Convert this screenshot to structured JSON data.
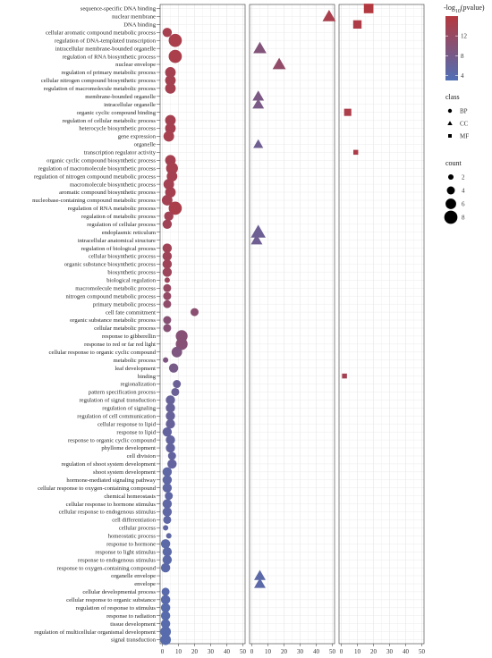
{
  "chart_data": {
    "type": "scatter",
    "title": "",
    "xlabel": "",
    "ylabel": "",
    "facets": [
      "BP",
      "CC",
      "MF"
    ],
    "xlim": [
      0,
      50
    ],
    "x_ticks": [
      "0",
      "10",
      "20",
      "30",
      "40",
      "50"
    ],
    "grid": true,
    "terms": [
      "sequence-specific DNA binding",
      "nuclear membrane",
      "DNA binding",
      "cellular aromatic compound metabolic process",
      "regulation of DNA-templated transcription",
      "intracellular membrane-bounded organelle",
      "regulation of RNA biosynthetic process",
      "nuclear envelope",
      "regulation of primary metabolic process",
      "cellular nitrogen compound biosynthetic process",
      "regulation of macromolecule metabolic process",
      "membrane-bounded organelle",
      "intracellular organelle",
      "organic cyclic compound binding",
      "regulation of cellular metabolic process",
      "heterocycle biosynthetic process",
      "gene expression",
      "organelle",
      "transcription regulator activity",
      "organic cyclic compound biosynthetic process",
      "regulation of macromolecule biosynthetic process",
      "regulation of nitrogen compound metabolic process",
      "macromolecule biosynthetic process",
      "aromatic compound biosynthetic process",
      "nucleobase-containing compound metabolic process",
      "regulation of RNA metabolic process",
      "regulation of metabolic process",
      "regulation of cellular process",
      "endoplasmic reticulum",
      "intracellular anatomical structure",
      "regulation of biological process",
      "cellular biosynthetic process",
      "organic substance biosynthetic process",
      "biosynthetic process",
      "biological regulation",
      "macromolecule metabolic process",
      "nitrogen compound metabolic process",
      "primary metabolic process",
      "cell fate commitment",
      "organic substance metabolic process",
      "cellular metabolic process",
      "response to gibberellin",
      "response to red or far red light",
      "cellular response to organic cyclic compound",
      "metabolic process",
      "leaf development",
      "binding",
      "regionalization",
      "pattern specification process",
      "regulation of signal transduction",
      "regulation of signaling",
      "regulation of cell communication",
      "cellular response to lipid",
      "response to lipid",
      "response to organic cyclic compound",
      "phyllome development",
      "cell division",
      "regulation of shoot system development",
      "shoot system development",
      "hormone-mediated signaling pathway",
      "cellular response to oxygen-containing compound",
      "chemical homeostasis",
      "cellular response to hormone stimulus",
      "cellular response to endogenous stimulus",
      "cell differentiation",
      "cellular process",
      "homeostatic process",
      "response to hormone",
      "response to light stimulus",
      "response to endogenous stimulus",
      "response to oxygen-containing compound",
      "organelle envelope",
      "envelope",
      "cellular developmental process",
      "cellular response to organic substance",
      "regulation of response to stimulus",
      "response to radiation",
      "tissue development",
      "regulation of multicellular organismal development",
      "signal transduction"
    ],
    "points": [
      {
        "term": "sequence-specific DNA binding",
        "class": "MF",
        "x": 17,
        "count": 6,
        "neglog10p": 15.8
      },
      {
        "term": "nuclear membrane",
        "class": "CC",
        "x": 48,
        "count": 6,
        "neglog10p": 14.5
      },
      {
        "term": "DNA binding",
        "class": "MF",
        "x": 10,
        "count": 5,
        "neglog10p": 15.0
      },
      {
        "term": "cellular aromatic compound metabolic process",
        "class": "BP",
        "x": 3,
        "count": 5,
        "neglog10p": 14.2
      },
      {
        "term": "regulation of DNA-templated transcription",
        "class": "BP",
        "x": 8,
        "count": 8,
        "neglog10p": 14.6
      },
      {
        "term": "intracellular membrane-bounded organelle",
        "class": "CC",
        "x": 5,
        "count": 6,
        "neglog10p": 9.5
      },
      {
        "term": "regulation of RNA biosynthetic process",
        "class": "BP",
        "x": 8,
        "count": 8,
        "neglog10p": 14.6
      },
      {
        "term": "nuclear envelope",
        "class": "CC",
        "x": 17,
        "count": 6,
        "neglog10p": 11.5
      },
      {
        "term": "regulation of primary metabolic process",
        "class": "BP",
        "x": 5,
        "count": 6,
        "neglog10p": 14.0
      },
      {
        "term": "cellular nitrogen compound biosynthetic process",
        "class": "BP",
        "x": 5,
        "count": 6,
        "neglog10p": 14.0
      },
      {
        "term": "regulation of macromolecule metabolic process",
        "class": "BP",
        "x": 5,
        "count": 6,
        "neglog10p": 14.0
      },
      {
        "term": "membrane-bounded organelle",
        "class": "CC",
        "x": 4,
        "count": 5,
        "neglog10p": 8.5
      },
      {
        "term": "intracellular organelle",
        "class": "CC",
        "x": 4,
        "count": 5,
        "neglog10p": 8.3
      },
      {
        "term": "organic cyclic compound binding",
        "class": "MF",
        "x": 4,
        "count": 4,
        "neglog10p": 14.8
      },
      {
        "term": "regulation of cellular metabolic process",
        "class": "BP",
        "x": 5,
        "count": 6,
        "neglog10p": 14.0
      },
      {
        "term": "heterocycle biosynthetic process",
        "class": "BP",
        "x": 5,
        "count": 6,
        "neglog10p": 14.0
      },
      {
        "term": "gene expression",
        "class": "BP",
        "x": 4,
        "count": 6,
        "neglog10p": 14.2
      },
      {
        "term": "organelle",
        "class": "CC",
        "x": 4,
        "count": 4,
        "neglog10p": 7.0
      },
      {
        "term": "transcription regulator activity",
        "class": "MF",
        "x": 9,
        "count": 2,
        "neglog10p": 14.9
      },
      {
        "term": "organic cyclic compound biosynthetic process",
        "class": "BP",
        "x": 5,
        "count": 6,
        "neglog10p": 14.0
      },
      {
        "term": "regulation of macromolecule biosynthetic process",
        "class": "BP",
        "x": 6,
        "count": 7,
        "neglog10p": 14.2
      },
      {
        "term": "regulation of nitrogen compound metabolic process",
        "class": "BP",
        "x": 6,
        "count": 6,
        "neglog10p": 14.0
      },
      {
        "term": "macromolecule biosynthetic process",
        "class": "BP",
        "x": 4,
        "count": 6,
        "neglog10p": 13.8
      },
      {
        "term": "aromatic compound biosynthetic process",
        "class": "BP",
        "x": 5,
        "count": 6,
        "neglog10p": 14.0
      },
      {
        "term": "nucleobase-containing compound metabolic process",
        "class": "BP",
        "x": 3,
        "count": 6,
        "neglog10p": 13.8
      },
      {
        "term": "regulation of RNA metabolic process",
        "class": "BP",
        "x": 8,
        "count": 8,
        "neglog10p": 14.6
      },
      {
        "term": "regulation of metabolic process",
        "class": "BP",
        "x": 4,
        "count": 5,
        "neglog10p": 13.6
      },
      {
        "term": "regulation of cellular process",
        "class": "BP",
        "x": 3,
        "count": 5,
        "neglog10p": 13.4
      },
      {
        "term": "endoplasmic reticulum",
        "class": "CC",
        "x": 4,
        "count": 7,
        "neglog10p": 6.8
      },
      {
        "term": "intracellular anatomical structure",
        "class": "CC",
        "x": 3,
        "count": 5,
        "neglog10p": 7.0
      },
      {
        "term": "regulation of biological process",
        "class": "BP",
        "x": 3,
        "count": 5,
        "neglog10p": 13.4
      },
      {
        "term": "cellular biosynthetic process",
        "class": "BP",
        "x": 3,
        "count": 5,
        "neglog10p": 13.2
      },
      {
        "term": "organic substance biosynthetic process",
        "class": "BP",
        "x": 3,
        "count": 5,
        "neglog10p": 13.2
      },
      {
        "term": "biosynthetic process",
        "class": "BP",
        "x": 3,
        "count": 5,
        "neglog10p": 13.0
      },
      {
        "term": "biological regulation",
        "class": "BP",
        "x": 3,
        "count": 2,
        "neglog10p": 12.8
      },
      {
        "term": "macromolecule metabolic process",
        "class": "BP",
        "x": 3,
        "count": 4,
        "neglog10p": 12.0
      },
      {
        "term": "nitrogen compound metabolic process",
        "class": "BP",
        "x": 3,
        "count": 4,
        "neglog10p": 11.8
      },
      {
        "term": "primary metabolic process",
        "class": "BP",
        "x": 3,
        "count": 4,
        "neglog10p": 11.2
      },
      {
        "term": "cell fate commitment",
        "class": "BP",
        "x": 20,
        "count": 4,
        "neglog10p": 10.5
      },
      {
        "term": "organic substance metabolic process",
        "class": "BP",
        "x": 3,
        "count": 4,
        "neglog10p": 10.0
      },
      {
        "term": "cellular metabolic process",
        "class": "BP",
        "x": 3,
        "count": 4,
        "neglog10p": 10.0
      },
      {
        "term": "response to gibberellin",
        "class": "BP",
        "x": 12,
        "count": 7,
        "neglog10p": 10.0
      },
      {
        "term": "response to red or far red light",
        "class": "BP",
        "x": 12,
        "count": 7,
        "neglog10p": 10.0
      },
      {
        "term": "cellular response to organic cyclic compound",
        "class": "BP",
        "x": 9,
        "count": 6,
        "neglog10p": 9.0
      },
      {
        "term": "metabolic process",
        "class": "BP",
        "x": 2,
        "count": 2,
        "neglog10p": 9.0
      },
      {
        "term": "leaf development",
        "class": "BP",
        "x": 7,
        "count": 5,
        "neglog10p": 8.0
      },
      {
        "term": "binding",
        "class": "MF",
        "x": 2,
        "count": 2,
        "neglog10p": 14.0
      },
      {
        "term": "regionalization",
        "class": "BP",
        "x": 9,
        "count": 4,
        "neglog10p": 6.5
      },
      {
        "term": "pattern specification process",
        "class": "BP",
        "x": 8,
        "count": 4,
        "neglog10p": 6.5
      },
      {
        "term": "regulation of signal transduction",
        "class": "BP",
        "x": 5,
        "count": 5,
        "neglog10p": 6.0
      },
      {
        "term": "regulation of signaling",
        "class": "BP",
        "x": 5,
        "count": 5,
        "neglog10p": 6.0
      },
      {
        "term": "regulation of cell communication",
        "class": "BP",
        "x": 5,
        "count": 5,
        "neglog10p": 6.0
      },
      {
        "term": "cellular response to lipid",
        "class": "BP",
        "x": 5,
        "count": 5,
        "neglog10p": 6.0
      },
      {
        "term": "response to lipid",
        "class": "BP",
        "x": 3,
        "count": 5,
        "neglog10p": 5.5
      },
      {
        "term": "response to organic cyclic compound",
        "class": "BP",
        "x": 5,
        "count": 5,
        "neglog10p": 5.5
      },
      {
        "term": "phyllome development",
        "class": "BP",
        "x": 5,
        "count": 5,
        "neglog10p": 5.5
      },
      {
        "term": "cell division",
        "class": "BP",
        "x": 6,
        "count": 4,
        "neglog10p": 5.5
      },
      {
        "term": "regulation of shoot system development",
        "class": "BP",
        "x": 6,
        "count": 5,
        "neglog10p": 5.5
      },
      {
        "term": "shoot system development",
        "class": "BP",
        "x": 3,
        "count": 5,
        "neglog10p": 5.0
      },
      {
        "term": "hormone-mediated signaling pathway",
        "class": "BP",
        "x": 3,
        "count": 5,
        "neglog10p": 5.0
      },
      {
        "term": "cellular response to oxygen-containing compound",
        "class": "BP",
        "x": 3,
        "count": 5,
        "neglog10p": 5.0
      },
      {
        "term": "chemical homeostasis",
        "class": "BP",
        "x": 4,
        "count": 4,
        "neglog10p": 5.0
      },
      {
        "term": "cellular response to hormone stimulus",
        "class": "BP",
        "x": 3,
        "count": 5,
        "neglog10p": 5.0
      },
      {
        "term": "cellular response to endogenous stimulus",
        "class": "BP",
        "x": 3,
        "count": 5,
        "neglog10p": 5.0
      },
      {
        "term": "cell differentiation",
        "class": "BP",
        "x": 3,
        "count": 4,
        "neglog10p": 5.0
      },
      {
        "term": "cellular process",
        "class": "BP",
        "x": 2,
        "count": 2,
        "neglog10p": 5.0
      },
      {
        "term": "homeostatic process",
        "class": "BP",
        "x": 4,
        "count": 2,
        "neglog10p": 5.0
      },
      {
        "term": "response to hormone",
        "class": "BP",
        "x": 2,
        "count": 5,
        "neglog10p": 4.5
      },
      {
        "term": "response to light stimulus",
        "class": "BP",
        "x": 3,
        "count": 5,
        "neglog10p": 4.5
      },
      {
        "term": "response to endogenous stimulus",
        "class": "BP",
        "x": 3,
        "count": 5,
        "neglog10p": 4.5
      },
      {
        "term": "response to oxygen-containing compound",
        "class": "BP",
        "x": 2,
        "count": 5,
        "neglog10p": 4.5
      },
      {
        "term": "organelle envelope",
        "class": "CC",
        "x": 5,
        "count": 5,
        "neglog10p": 4.5
      },
      {
        "term": "envelope",
        "class": "CC",
        "x": 5,
        "count": 5,
        "neglog10p": 4.5
      },
      {
        "term": "cellular developmental process",
        "class": "BP",
        "x": 2,
        "count": 4,
        "neglog10p": 4.2
      },
      {
        "term": "cellular response to organic substance",
        "class": "BP",
        "x": 2,
        "count": 5,
        "neglog10p": 4.2
      },
      {
        "term": "regulation of response to stimulus",
        "class": "BP",
        "x": 2,
        "count": 5,
        "neglog10p": 4.0
      },
      {
        "term": "response to radiation",
        "class": "BP",
        "x": 2,
        "count": 5,
        "neglog10p": 4.0
      },
      {
        "term": "tissue development",
        "class": "BP",
        "x": 2,
        "count": 5,
        "neglog10p": 4.0
      },
      {
        "term": "regulation of multicellular organismal development",
        "class": "BP",
        "x": 2,
        "count": 6,
        "neglog10p": 4.0
      },
      {
        "term": "signal transduction",
        "class": "BP",
        "x": 2,
        "count": 6,
        "neglog10p": 4.0
      }
    ],
    "legend": {
      "color": {
        "title": "-log",
        "sub": "10",
        "title_suffix": "(pvalue)",
        "ticks": [
          "12",
          "8",
          "4"
        ],
        "range": [
          3,
          16
        ],
        "low_color": "#4f6fb6",
        "high_color": "#b5383e"
      },
      "class": {
        "title": "class",
        "items": [
          {
            "label": "BP",
            "shape": "circle"
          },
          {
            "label": "CC",
            "shape": "triangle"
          },
          {
            "label": "MF",
            "shape": "square"
          }
        ]
      },
      "count": {
        "title": "count",
        "items": [
          {
            "label": "2",
            "value": 2
          },
          {
            "label": "4",
            "value": 4
          },
          {
            "label": "6",
            "value": 6
          },
          {
            "label": "8",
            "value": 8
          }
        ]
      }
    }
  }
}
